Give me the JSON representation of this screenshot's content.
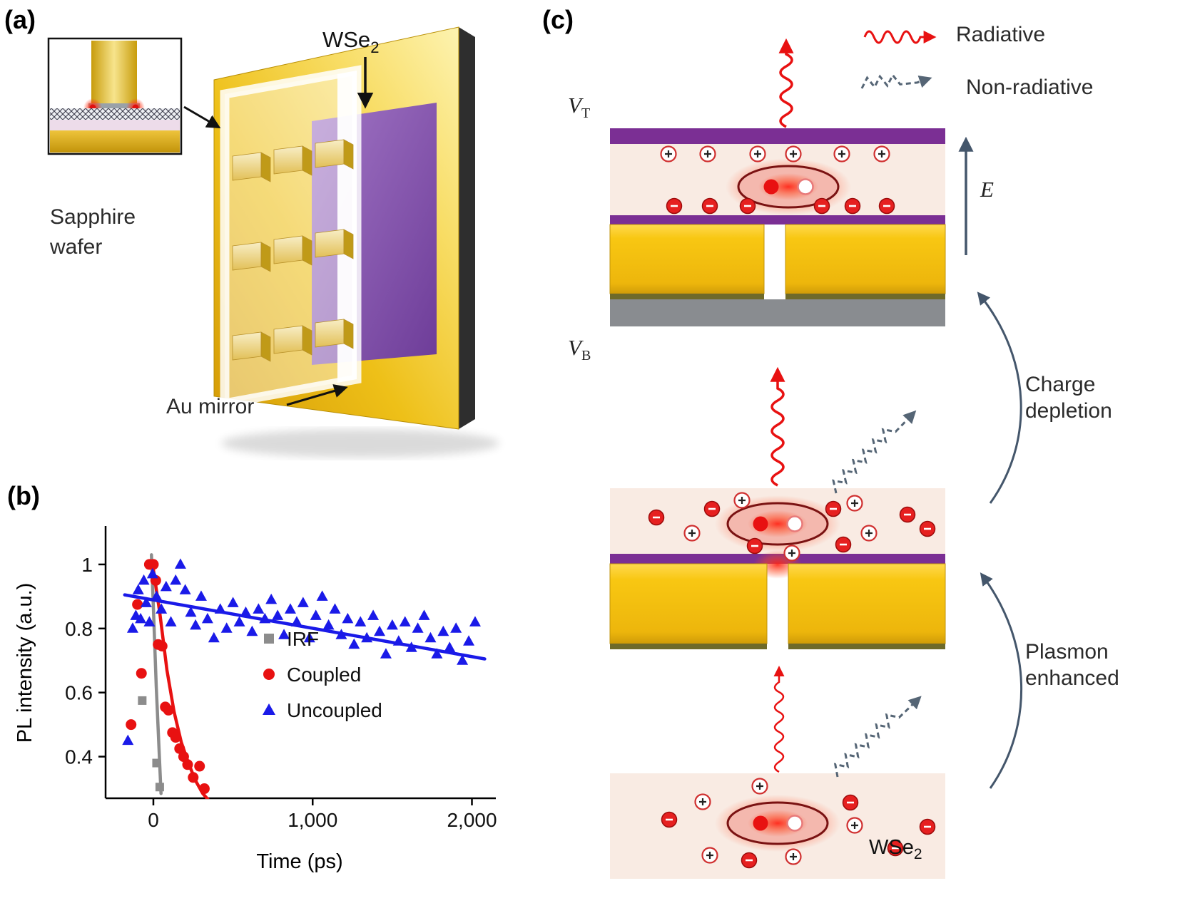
{
  "figure": {
    "panel_a": {
      "label": "(a)",
      "sapphire_label": [
        "Sapphire",
        "wafer"
      ],
      "wse2_base": "WSe",
      "wse2_sub": "2",
      "au_mirror_label": "Au mirror"
    },
    "panel_b": {
      "label": "(b)"
    },
    "panel_c": {
      "label": "(c)",
      "legend": {
        "radiative": "Radiative",
        "non_radiative": "Non-radiative"
      },
      "v_base": "V",
      "vt_sub": "T",
      "vb_sub": "B",
      "e_label": "E",
      "charge_depletion": [
        "Charge",
        "depletion"
      ],
      "plasmon_enhanced": [
        "Plasmon",
        "enhanced"
      ],
      "wse2_base": "WSe",
      "wse2_sub": "2"
    },
    "colors": {
      "gold": "#f2c91e",
      "purple": "#7b2f94",
      "pink_region": "#f9ebe3",
      "radiative_red": "#e81111",
      "nonradiative_slate": "#556575",
      "chart_blue": "#1a1ae8",
      "chart_red": "#e81111",
      "chart_gray": "#8c8c8c"
    }
  },
  "chart_data": {
    "type": "scatter",
    "title": "",
    "xlabel": "Time (ps)",
    "ylabel": "PL intensity (a.u.)",
    "xlim": [
      -300,
      2150
    ],
    "ylim": [
      0.27,
      1.12
    ],
    "grid": false,
    "legend_position": "center-right-inside",
    "xticks": [
      {
        "v": 0,
        "label": "0"
      },
      {
        "v": 1000,
        "label": "1,000"
      },
      {
        "v": 2000,
        "label": "2,000"
      }
    ],
    "yticks": [
      {
        "v": 1.0,
        "label": "1"
      },
      {
        "v": 0.8,
        "label": "0.8"
      },
      {
        "v": 0.6,
        "label": "0.6"
      },
      {
        "v": 0.4,
        "label": "0.4"
      }
    ],
    "series": [
      {
        "name": "IRF",
        "marker": "square",
        "color": "#8c8c8c",
        "points": [
          [
            -70,
            0.575
          ],
          [
            20,
            0.38
          ],
          [
            40,
            0.305
          ]
        ],
        "line": [
          [
            -12,
            1.03
          ],
          [
            18,
            0.62
          ],
          [
            48,
            0.285
          ]
        ]
      },
      {
        "name": "Coupled",
        "marker": "circle",
        "color": "#e81111",
        "points": [
          [
            -140,
            0.5
          ],
          [
            -100,
            0.875
          ],
          [
            -75,
            0.66
          ],
          [
            -25,
            1.0
          ],
          [
            0,
            1.0
          ],
          [
            15,
            0.95
          ],
          [
            30,
            0.75
          ],
          [
            55,
            0.745
          ],
          [
            75,
            0.555
          ],
          [
            95,
            0.545
          ],
          [
            120,
            0.475
          ],
          [
            140,
            0.46
          ],
          [
            165,
            0.425
          ],
          [
            190,
            0.4
          ],
          [
            215,
            0.375
          ],
          [
            250,
            0.335
          ],
          [
            290,
            0.37
          ],
          [
            320,
            0.3
          ]
        ],
        "line": [
          [
            -5,
            1.0
          ],
          [
            40,
            0.85
          ],
          [
            85,
            0.67
          ],
          [
            130,
            0.54
          ],
          [
            175,
            0.445
          ],
          [
            220,
            0.38
          ],
          [
            265,
            0.325
          ],
          [
            310,
            0.285
          ],
          [
            345,
            0.265
          ]
        ]
      },
      {
        "name": "Uncoupled",
        "marker": "triangle",
        "color": "#1a1ae8",
        "points": [
          [
            -160,
            0.45
          ],
          [
            -130,
            0.8
          ],
          [
            -110,
            0.84
          ],
          [
            -95,
            0.92
          ],
          [
            -80,
            0.83
          ],
          [
            -60,
            0.95
          ],
          [
            -45,
            0.88
          ],
          [
            -25,
            0.82
          ],
          [
            -5,
            0.97
          ],
          [
            20,
            0.9
          ],
          [
            50,
            0.86
          ],
          [
            80,
            0.93
          ],
          [
            110,
            0.82
          ],
          [
            140,
            0.95
          ],
          [
            170,
            1.0
          ],
          [
            200,
            0.92
          ],
          [
            235,
            0.85
          ],
          [
            265,
            0.81
          ],
          [
            300,
            0.9
          ],
          [
            340,
            0.83
          ],
          [
            380,
            0.77
          ],
          [
            420,
            0.86
          ],
          [
            460,
            0.8
          ],
          [
            500,
            0.88
          ],
          [
            540,
            0.82
          ],
          [
            580,
            0.85
          ],
          [
            620,
            0.79
          ],
          [
            660,
            0.86
          ],
          [
            700,
            0.83
          ],
          [
            740,
            0.89
          ],
          [
            780,
            0.84
          ],
          [
            820,
            0.78
          ],
          [
            860,
            0.86
          ],
          [
            900,
            0.82
          ],
          [
            940,
            0.88
          ],
          [
            980,
            0.77
          ],
          [
            1020,
            0.84
          ],
          [
            1060,
            0.9
          ],
          [
            1100,
            0.81
          ],
          [
            1140,
            0.86
          ],
          [
            1180,
            0.78
          ],
          [
            1220,
            0.83
          ],
          [
            1260,
            0.75
          ],
          [
            1300,
            0.82
          ],
          [
            1340,
            0.77
          ],
          [
            1380,
            0.84
          ],
          [
            1420,
            0.79
          ],
          [
            1460,
            0.72
          ],
          [
            1500,
            0.81
          ],
          [
            1540,
            0.76
          ],
          [
            1580,
            0.82
          ],
          [
            1620,
            0.74
          ],
          [
            1660,
            0.8
          ],
          [
            1700,
            0.84
          ],
          [
            1740,
            0.77
          ],
          [
            1780,
            0.72
          ],
          [
            1820,
            0.79
          ],
          [
            1860,
            0.74
          ],
          [
            1900,
            0.8
          ],
          [
            1940,
            0.7
          ],
          [
            1980,
            0.76
          ],
          [
            2020,
            0.82
          ]
        ],
        "line": [
          [
            -180,
            0.905
          ],
          [
            2080,
            0.705
          ]
        ]
      }
    ]
  }
}
